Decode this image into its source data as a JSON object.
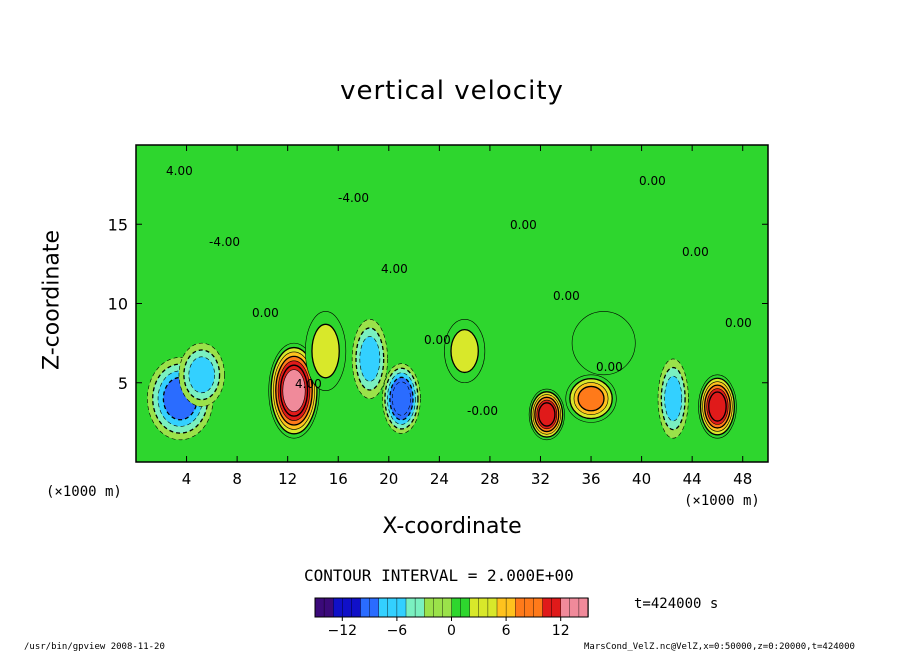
{
  "chart_data": {
    "type": "heatmap",
    "title": "vertical velocity",
    "xlabel": "X-coordinate",
    "ylabel": "Z-coordinate",
    "x_unit": "(×1000 m)",
    "xlim": [
      0,
      50
    ],
    "ylim": [
      0,
      20
    ],
    "x_ticks": [
      4,
      8,
      12,
      16,
      20,
      24,
      28,
      32,
      36,
      40,
      44,
      48
    ],
    "y_ticks": [
      5,
      10,
      15
    ],
    "contour_interval_text": "CONTOUR INTERVAL = 2.000E+00",
    "contour_interval": 2.0,
    "colorbar": {
      "range": [
        -15,
        15
      ],
      "ticks": [
        -12,
        -6,
        0,
        6,
        12
      ],
      "colors": [
        "#3b0a7a",
        "#1010c8",
        "#2a6cff",
        "#33d0ff",
        "#7af0c0",
        "#9be24a",
        "#2ed62e",
        "#d8e82a",
        "#ffc21e",
        "#ff7a1a",
        "#e01a1a",
        "#f08a9a"
      ]
    },
    "contour_labels": [
      "4.00",
      "-4.00",
      "0.00",
      "4.00",
      "-4.00",
      "4.00",
      "0.00",
      "-0.00",
      "0.00",
      "0.00",
      "0.00",
      "0.00",
      "0.00",
      "0.00"
    ],
    "cells": [
      {
        "x": 3.5,
        "z": 4.0,
        "w": -9,
        "sx": 2.6,
        "sz": 2.6
      },
      {
        "x": 5.2,
        "z": 5.5,
        "w": -6,
        "sx": 1.8,
        "sz": 2.0
      },
      {
        "x": 12.5,
        "z": 4.5,
        "w": 14,
        "sx": 2.0,
        "sz": 3.0
      },
      {
        "x": 15.0,
        "z": 7.0,
        "w": 4,
        "sx": 1.6,
        "sz": 2.5
      },
      {
        "x": 18.5,
        "z": 6.5,
        "w": -6,
        "sx": 1.4,
        "sz": 2.5
      },
      {
        "x": 21.0,
        "z": 4.0,
        "w": -11,
        "sx": 1.5,
        "sz": 2.2
      },
      {
        "x": 26.0,
        "z": 7.0,
        "w": 4,
        "sx": 1.6,
        "sz": 2.0
      },
      {
        "x": 32.5,
        "z": 3.0,
        "w": 12,
        "sx": 1.4,
        "sz": 1.6
      },
      {
        "x": 36.0,
        "z": 4.0,
        "w": 8,
        "sx": 2.0,
        "sz": 1.5
      },
      {
        "x": 37.0,
        "z": 7.5,
        "w": 3,
        "sx": 2.5,
        "sz": 2.0
      },
      {
        "x": 42.5,
        "z": 4.0,
        "w": -7,
        "sx": 1.2,
        "sz": 2.5
      },
      {
        "x": 46.0,
        "z": 3.5,
        "w": 13,
        "sx": 1.5,
        "sz": 2.0
      }
    ]
  },
  "footer": {
    "left": "/usr/bin/gpview   2008-11-20",
    "right": "MarsCond_VelZ.nc@VelZ,x=0:50000,z=0:20000,t=424000"
  },
  "time_label": "t=424000 s"
}
